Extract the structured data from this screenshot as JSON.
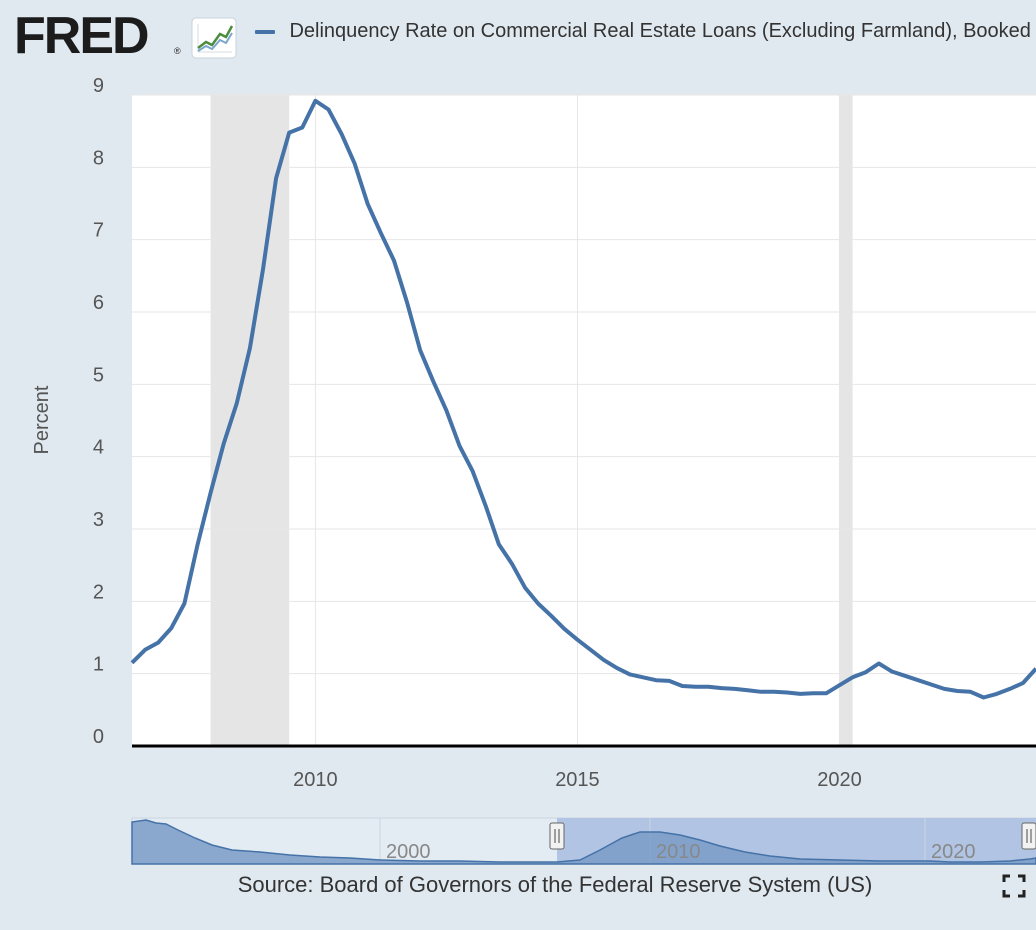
{
  "brand": {
    "name": "FRED",
    "reg_mark": "®",
    "icon": "trend-graph-icon"
  },
  "legend": {
    "label": "Delinquency Rate on Commercial Real Estate Loans (Excluding Farmland), Booked",
    "color": "#4572a7"
  },
  "source": "Source: Board of Governors of the Federal Reserve System (US)",
  "controls": {
    "fullscreen_icon": "fullscreen-icon"
  },
  "chart_data": {
    "type": "line",
    "ylabel": "Percent",
    "xlabel": "",
    "ylim": [
      0,
      9
    ],
    "xlim": [
      2006.5,
      2023.75
    ],
    "yticks": [
      "0",
      "1",
      "2",
      "3",
      "4",
      "5",
      "6",
      "7",
      "8",
      "9"
    ],
    "xticks": [
      "2010",
      "2015",
      "2020"
    ],
    "grid": true,
    "line_color": "#4572a7",
    "recessions": [
      [
        2008.0,
        2009.5
      ],
      [
        2020.0,
        2020.25
      ]
    ],
    "series": [
      {
        "x": [
          2006.5,
          2006.75,
          2007.0,
          2007.25,
          2007.5,
          2007.75,
          2008.0,
          2008.25,
          2008.5,
          2008.75,
          2009.0,
          2009.25,
          2009.5,
          2009.75,
          2010.0,
          2010.25,
          2010.5,
          2010.75,
          2011.0,
          2011.25,
          2011.5,
          2011.75,
          2012.0,
          2012.25,
          2012.5,
          2012.75,
          2013.0,
          2013.25,
          2013.5,
          2013.75,
          2014.0,
          2014.25,
          2014.5,
          2014.75,
          2015.0,
          2015.25,
          2015.5,
          2015.75,
          2016.0,
          2016.25,
          2016.5,
          2016.75,
          2017.0,
          2017.25,
          2017.5,
          2017.75,
          2018.0,
          2018.25,
          2018.5,
          2018.75,
          2019.0,
          2019.25,
          2019.5,
          2019.75,
          2020.0,
          2020.25,
          2020.5,
          2020.75,
          2021.0,
          2021.25,
          2021.5,
          2021.75,
          2022.0,
          2022.25,
          2022.5,
          2022.75,
          2023.0,
          2023.25,
          2023.5,
          2023.75
        ],
        "values": [
          1.15,
          1.33,
          1.43,
          1.63,
          1.97,
          2.78,
          3.5,
          4.18,
          4.74,
          5.5,
          6.59,
          7.85,
          8.48,
          8.55,
          8.92,
          8.8,
          8.46,
          8.05,
          7.49,
          7.09,
          6.71,
          6.13,
          5.47,
          5.04,
          4.64,
          4.15,
          3.8,
          3.32,
          2.79,
          2.52,
          2.19,
          1.97,
          1.8,
          1.62,
          1.47,
          1.33,
          1.19,
          1.08,
          0.99,
          0.95,
          0.91,
          0.9,
          0.83,
          0.82,
          0.82,
          0.8,
          0.79,
          0.77,
          0.75,
          0.75,
          0.74,
          0.72,
          0.73,
          0.73,
          0.84,
          0.95,
          1.02,
          1.14,
          1.03,
          0.97,
          0.91,
          0.85,
          0.79,
          0.76,
          0.75,
          0.67,
          0.72,
          0.79,
          0.87,
          1.07
        ]
      }
    ],
    "navigator": {
      "xticks": [
        "2000",
        "2010",
        "2020"
      ]
    }
  }
}
